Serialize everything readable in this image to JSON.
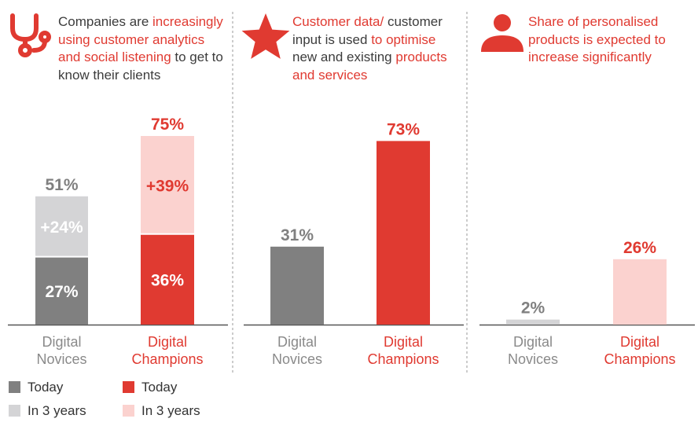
{
  "colors": {
    "novice_today": "#808080",
    "novice_future": "#d4d4d6",
    "champion_today": "#e03a31",
    "champion_future": "#fbd2cf",
    "category_novice_text": "#8a8a8a",
    "category_champion_text": "#e03a31",
    "axis": "#555555"
  },
  "chart_data": [
    {
      "type": "bar",
      "stacked": true,
      "icon": "stethoscope-icon",
      "heading": [
        {
          "text": "Companies are ",
          "color": "dark"
        },
        {
          "text": "increasingly using customer analytics and social listening",
          "color": "red"
        },
        {
          "text": " to get to know their clients",
          "color": "dark"
        }
      ],
      "categories": [
        "Digital Novices",
        "Digital Champions"
      ],
      "series": [
        {
          "values": [
            27,
            36
          ],
          "labels": [
            "27%",
            "36%"
          ]
        },
        {
          "values": [
            24,
            39
          ],
          "labels": [
            "+24%",
            "+39%"
          ]
        }
      ],
      "totals": [
        "51%",
        "75%"
      ],
      "ylim": [
        0,
        75
      ]
    },
    {
      "type": "bar",
      "icon": "star-icon",
      "heading": [
        {
          "text": "Customer data/",
          "color": "red"
        },
        {
          "text": " customer input is used ",
          "color": "dark"
        },
        {
          "text": "to optimise",
          "color": "red"
        },
        {
          "text": " new and existing ",
          "color": "dark"
        },
        {
          "text": "products and services",
          "color": "red"
        }
      ],
      "categories": [
        "Digital Novices",
        "Digital Champions"
      ],
      "values": [
        31,
        73
      ],
      "labels": [
        "31%",
        "73%"
      ],
      "ylim": [
        0,
        75
      ]
    },
    {
      "type": "bar",
      "icon": "person-icon",
      "heading": [
        {
          "text": "Share of personalised products is expected to increase significantly",
          "color": "red"
        }
      ],
      "categories": [
        "Digital Novices",
        "Digital Champions"
      ],
      "values": [
        2,
        26
      ],
      "labels": [
        "2%",
        "26%"
      ],
      "ylim": [
        0,
        75
      ]
    }
  ],
  "legend": {
    "novices": [
      "Today",
      "In 3 years"
    ],
    "champions": [
      "Today",
      "In 3 years"
    ]
  }
}
